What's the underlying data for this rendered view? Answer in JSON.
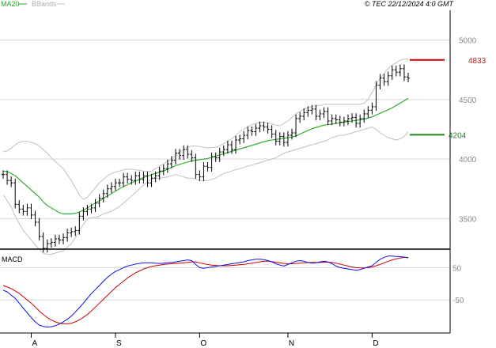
{
  "legend": {
    "ma_label": "MA20",
    "bb_label": "BBands"
  },
  "copyright": "© TEC 22/12/2024 4:0 GMT",
  "colors": {
    "price_bar": "#000000",
    "ma20": "#22aa22",
    "bbands": "#c0c0c0",
    "grid": "#d8d8d8",
    "panel_bg": "#ffffff",
    "resistance": "#cc0000",
    "support": "#1a8a1a",
    "macd_line": "#1010ee",
    "signal_line": "#cc0000"
  },
  "chart_data": [
    {
      "type": "ohlc",
      "panel": "price",
      "yticks": [
        "5000",
        "4500",
        "4000",
        "3500"
      ],
      "ytick_values": [
        5000,
        4500,
        4000,
        3500
      ],
      "ylim": [
        3250,
        5250
      ],
      "xtick_labels": [
        "A",
        "S",
        "O",
        "N",
        "D"
      ],
      "xtick_index": [
        7,
        28,
        49,
        71,
        92
      ],
      "close": [
        3870,
        3820,
        3800,
        3620,
        3580,
        3560,
        3590,
        3530,
        3470,
        3350,
        3250,
        3290,
        3300,
        3330,
        3320,
        3340,
        3380,
        3390,
        3400,
        3520,
        3560,
        3580,
        3590,
        3630,
        3670,
        3710,
        3750,
        3770,
        3800,
        3800,
        3850,
        3830,
        3820,
        3860,
        3830,
        3860,
        3800,
        3840,
        3860,
        3900,
        3920,
        3960,
        3990,
        4050,
        4030,
        4080,
        4040,
        4010,
        3870,
        3850,
        3940,
        3930,
        4020,
        4010,
        4060,
        4080,
        4120,
        4080,
        4160,
        4170,
        4200,
        4240,
        4230,
        4260,
        4280,
        4270,
        4250,
        4210,
        4150,
        4190,
        4140,
        4200,
        4220,
        4340,
        4360,
        4390,
        4410,
        4420,
        4360,
        4380,
        4400,
        4320,
        4340,
        4330,
        4310,
        4320,
        4340,
        4350,
        4300,
        4340,
        4380,
        4410,
        4440,
        4620,
        4680,
        4650,
        4700,
        4750,
        4730,
        4760,
        4690,
        4680
      ],
      "ma20": [
        3900,
        3895,
        3880,
        3860,
        3830,
        3800,
        3770,
        3740,
        3710,
        3680,
        3640,
        3610,
        3590,
        3570,
        3550,
        3540,
        3540,
        3540,
        3545,
        3555,
        3570,
        3590,
        3610,
        3630,
        3650,
        3670,
        3690,
        3710,
        3730,
        3750,
        3770,
        3785,
        3800,
        3815,
        3830,
        3845,
        3855,
        3870,
        3880,
        3890,
        3900,
        3915,
        3930,
        3945,
        3955,
        3965,
        3975,
        3985,
        3990,
        3995,
        4000,
        4005,
        4015,
        4025,
        4035,
        4045,
        4055,
        4065,
        4075,
        4085,
        4095,
        4105,
        4115,
        4125,
        4135,
        4145,
        4155,
        4160,
        4165,
        4170,
        4175,
        4180,
        4185,
        4195,
        4210,
        4225,
        4240,
        4255,
        4265,
        4275,
        4285,
        4290,
        4295,
        4300,
        4305,
        4310,
        4315,
        4320,
        4325,
        4330,
        4335,
        4345,
        4355,
        4370,
        4385,
        4400,
        4415,
        4430,
        4450,
        4470,
        4490,
        4510
      ],
      "bb_upper": [
        4060,
        4070,
        4090,
        4120,
        4140,
        4150,
        4150,
        4140,
        4130,
        4110,
        4080,
        4050,
        4010,
        3980,
        3950,
        3920,
        3870,
        3820,
        3760,
        3700,
        3660,
        3680,
        3720,
        3760,
        3800,
        3830,
        3860,
        3880,
        3890,
        3900,
        3910,
        3915,
        3915,
        3910,
        3905,
        3900,
        3895,
        3900,
        3920,
        3940,
        3960,
        3980,
        4000,
        4030,
        4060,
        4080,
        4100,
        4110,
        4110,
        4105,
        4100,
        4095,
        4095,
        4100,
        4110,
        4130,
        4150,
        4170,
        4200,
        4230,
        4250,
        4270,
        4290,
        4300,
        4310,
        4310,
        4305,
        4295,
        4285,
        4280,
        4300,
        4320,
        4350,
        4380,
        4400,
        4420,
        4430,
        4440,
        4450,
        4450,
        4460,
        4460,
        4460,
        4460,
        4460,
        4460,
        4460,
        4460,
        4460,
        4460,
        4470,
        4500,
        4560,
        4620,
        4680,
        4720,
        4760,
        4790,
        4810,
        4830,
        4840,
        4840
      ],
      "bb_lower": [
        3700,
        3650,
        3600,
        3520,
        3460,
        3400,
        3360,
        3320,
        3280,
        3240,
        3210,
        3200,
        3200,
        3210,
        3220,
        3230,
        3260,
        3290,
        3340,
        3400,
        3450,
        3500,
        3510,
        3510,
        3520,
        3540,
        3550,
        3560,
        3580,
        3600,
        3630,
        3660,
        3690,
        3720,
        3750,
        3780,
        3810,
        3830,
        3840,
        3840,
        3845,
        3850,
        3860,
        3870,
        3860,
        3850,
        3840,
        3840,
        3830,
        3820,
        3820,
        3820,
        3830,
        3840,
        3860,
        3880,
        3890,
        3900,
        3910,
        3920,
        3930,
        3940,
        3950,
        3960,
        3970,
        3980,
        3990,
        4000,
        4010,
        4030,
        4050,
        4060,
        4070,
        4080,
        4090,
        4100,
        4110,
        4120,
        4130,
        4140,
        4150,
        4160,
        4180,
        4190,
        4200,
        4200,
        4210,
        4220,
        4230,
        4240,
        4250,
        4260,
        4270,
        4250,
        4220,
        4200,
        4180,
        4170,
        4160,
        4170,
        4190,
        4230
      ],
      "resistance": {
        "label": "4833",
        "value": 4833
      },
      "support": {
        "label": "4204",
        "value": 4204
      }
    },
    {
      "type": "line",
      "panel": "macd",
      "title": "MACD",
      "yticks": [
        "50",
        "-50"
      ],
      "ytick_values": [
        50,
        -50
      ],
      "ylim": [
        -150,
        105
      ],
      "series": [
        {
          "key": "macd",
          "values": [
            -20,
            -25,
            -35,
            -45,
            -60,
            -75,
            -90,
            -105,
            -118,
            -128,
            -132,
            -134,
            -133,
            -130,
            -125,
            -118,
            -110,
            -100,
            -88,
            -74,
            -60,
            -45,
            -30,
            -18,
            -5,
            8,
            20,
            30,
            38,
            44,
            50,
            55,
            58,
            61,
            63,
            65,
            65,
            65,
            64,
            63,
            64,
            65,
            66,
            68,
            70,
            72,
            74,
            72,
            60,
            50,
            48,
            50,
            52,
            54,
            56,
            58,
            60,
            62,
            64,
            66,
            68,
            72,
            74,
            76,
            76,
            75,
            72,
            68,
            62,
            58,
            55,
            60,
            65,
            70,
            72,
            70,
            66,
            64,
            65,
            68,
            70,
            68,
            62,
            55,
            50,
            48,
            46,
            44,
            42,
            44,
            48,
            52,
            56,
            66,
            76,
            82,
            86,
            86,
            85,
            84,
            83,
            80
          ]
        },
        {
          "key": "signal",
          "values": [
            -5,
            -10,
            -15,
            -22,
            -30,
            -40,
            -50,
            -60,
            -72,
            -84,
            -95,
            -105,
            -112,
            -118,
            -122,
            -124,
            -124,
            -122,
            -118,
            -112,
            -104,
            -95,
            -84,
            -72,
            -60,
            -48,
            -36,
            -24,
            -12,
            -2,
            8,
            18,
            26,
            34,
            40,
            46,
            50,
            54,
            56,
            58,
            60,
            61,
            62,
            63,
            64,
            65,
            66,
            68,
            68,
            65,
            62,
            60,
            58,
            57,
            56,
            56,
            56,
            57,
            58,
            59,
            60,
            62,
            64,
            66,
            68,
            70,
            70,
            69,
            67,
            65,
            63,
            62,
            62,
            63,
            64,
            65,
            66,
            66,
            66,
            66,
            67,
            67,
            66,
            64,
            61,
            58,
            55,
            52,
            50,
            49,
            49,
            50,
            52,
            56,
            60,
            65,
            70,
            74,
            77,
            80,
            82,
            82
          ]
        }
      ],
      "xtick_labels": [
        "A",
        "S",
        "O",
        "N",
        "D"
      ]
    }
  ]
}
